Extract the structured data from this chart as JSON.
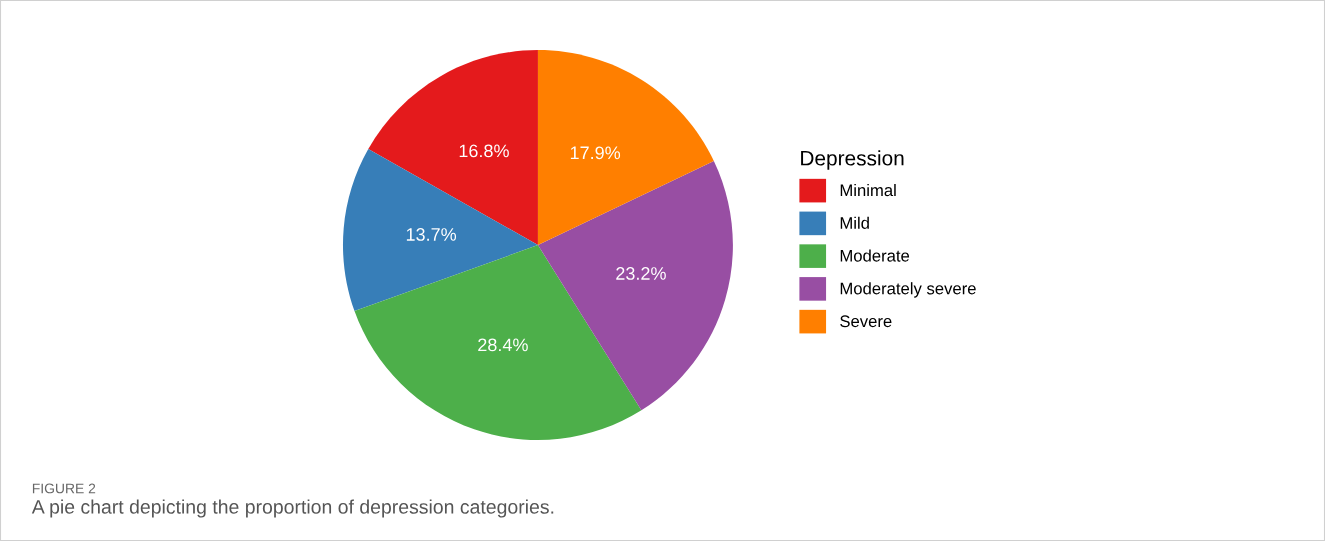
{
  "chart_data": {
    "type": "pie",
    "categories": [
      "Minimal",
      "Mild",
      "Moderate",
      "Moderately severe",
      "Severe"
    ],
    "values": [
      16.8,
      13.7,
      28.4,
      23.2,
      17.9
    ],
    "colors": [
      "#e41a1c",
      "#377eb8",
      "#4daf4a",
      "#984ea3",
      "#ff7f00"
    ],
    "value_labels": [
      "16.8%",
      "13.7%",
      "28.4%",
      "23.2%",
      "17.9%"
    ],
    "legend": "right",
    "legend_title": "Depression",
    "annotations": [
      "FIGURE 2",
      "A pie chart depicting the proportion of depression categories."
    ]
  }
}
